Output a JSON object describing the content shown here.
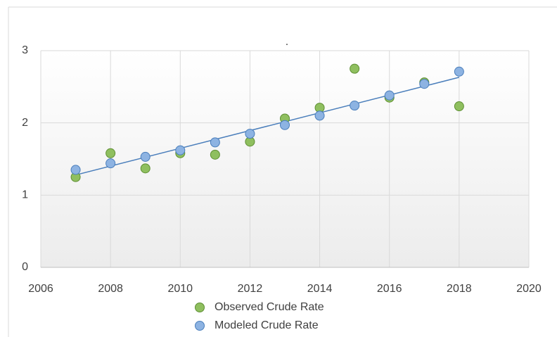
{
  "chart_data": {
    "type": "scatter",
    "title": ".",
    "series": [
      {
        "name": "Observed Crude Rate",
        "color": "#8fbf5f",
        "stroke": "#5e8f33",
        "x": [
          2007,
          2008,
          2009,
          2010,
          2011,
          2012,
          2013,
          2014,
          2015,
          2016,
          2017,
          2018
        ],
        "values": [
          1.25,
          1.58,
          1.37,
          1.58,
          1.56,
          1.74,
          2.06,
          2.21,
          2.75,
          2.35,
          2.56,
          2.23
        ]
      },
      {
        "name": "Modeled Crude Rate",
        "color": "#8db3e2",
        "stroke": "#4a7ebb",
        "x": [
          2007,
          2008,
          2009,
          2010,
          2011,
          2012,
          2013,
          2014,
          2015,
          2016,
          2017,
          2018
        ],
        "values": [
          1.35,
          1.44,
          1.53,
          1.62,
          1.73,
          1.85,
          1.97,
          2.1,
          2.24,
          2.38,
          2.54,
          2.71
        ],
        "trendline": true
      }
    ],
    "xlim": [
      2006,
      2020
    ],
    "xticks": [
      2006,
      2008,
      2010,
      2012,
      2014,
      2016,
      2018,
      2020
    ],
    "ylim": [
      0,
      3
    ],
    "yticks": [
      0,
      1,
      2,
      3
    ],
    "grid": true
  }
}
